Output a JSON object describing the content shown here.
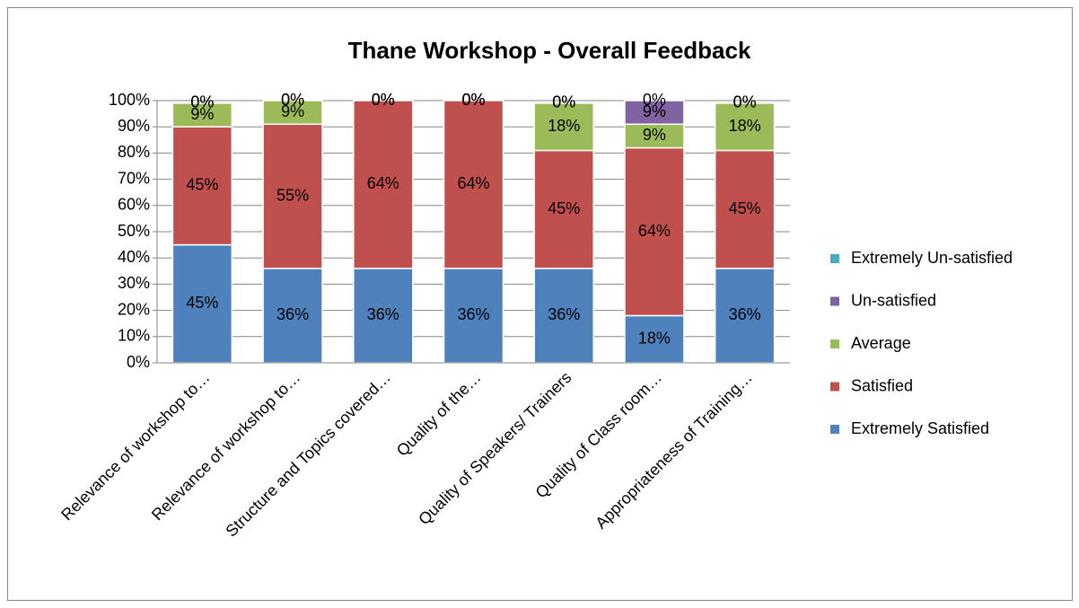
{
  "chart_data": {
    "type": "stacked_bar",
    "title": "Thane Workshop - Overall Feedback",
    "categories": [
      "Relevance of workshop to…",
      "Relevance of workshop to…",
      "Structure and Topics covered…",
      "Quality of the…",
      "Quality of Speakers/ Trainers",
      "Quality of Class room…",
      "Appropriateness of Training…"
    ],
    "series": [
      {
        "name": "Extremely Satisfied",
        "color": "#4f81bd",
        "values": [
          45,
          36,
          36,
          36,
          36,
          18,
          36
        ],
        "value_labels": [
          "45%",
          "36%",
          "36%",
          "36%",
          "36%",
          "18%",
          "36%"
        ]
      },
      {
        "name": "Satisfied",
        "color": "#c0504d",
        "values": [
          45,
          55,
          64,
          64,
          45,
          64,
          45
        ],
        "value_labels": [
          "45%",
          "55%",
          "64%",
          "64%",
          "45%",
          "64%",
          "45%"
        ]
      },
      {
        "name": "Average",
        "color": "#9bbb59",
        "values": [
          9,
          9,
          0,
          0,
          18,
          9,
          18
        ],
        "value_labels": [
          "9%",
          "9%",
          "0%",
          "0%",
          "18%",
          "9%",
          "18%"
        ]
      },
      {
        "name": "Un-satisfied",
        "color": "#8064a2",
        "values": [
          0,
          0,
          0,
          0,
          0,
          9,
          0
        ],
        "value_labels": [
          "0%",
          "0%",
          "0%",
          "0%",
          "0%",
          "9%",
          "0%"
        ]
      },
      {
        "name": "Extremely Un-satisfied",
        "color": "#4bacc6",
        "values": [
          0,
          0,
          0,
          0,
          0,
          0,
          0
        ],
        "value_labels": [
          "0%",
          "0%",
          "0%",
          "0%",
          "0%",
          "0%",
          "0%"
        ]
      }
    ],
    "ylim": [
      0,
      100
    ],
    "yticks": [
      {
        "value": 0,
        "label": "0%"
      },
      {
        "value": 10,
        "label": "10%"
      },
      {
        "value": 20,
        "label": "20%"
      },
      {
        "value": 30,
        "label": "30%"
      },
      {
        "value": 40,
        "label": "40%"
      },
      {
        "value": 50,
        "label": "50%"
      },
      {
        "value": 60,
        "label": "60%"
      },
      {
        "value": 70,
        "label": "70%"
      },
      {
        "value": 80,
        "label": "80%"
      },
      {
        "value": 90,
        "label": "90%"
      },
      {
        "value": 100,
        "label": "100%"
      }
    ],
    "grid": true,
    "legend": "right"
  }
}
